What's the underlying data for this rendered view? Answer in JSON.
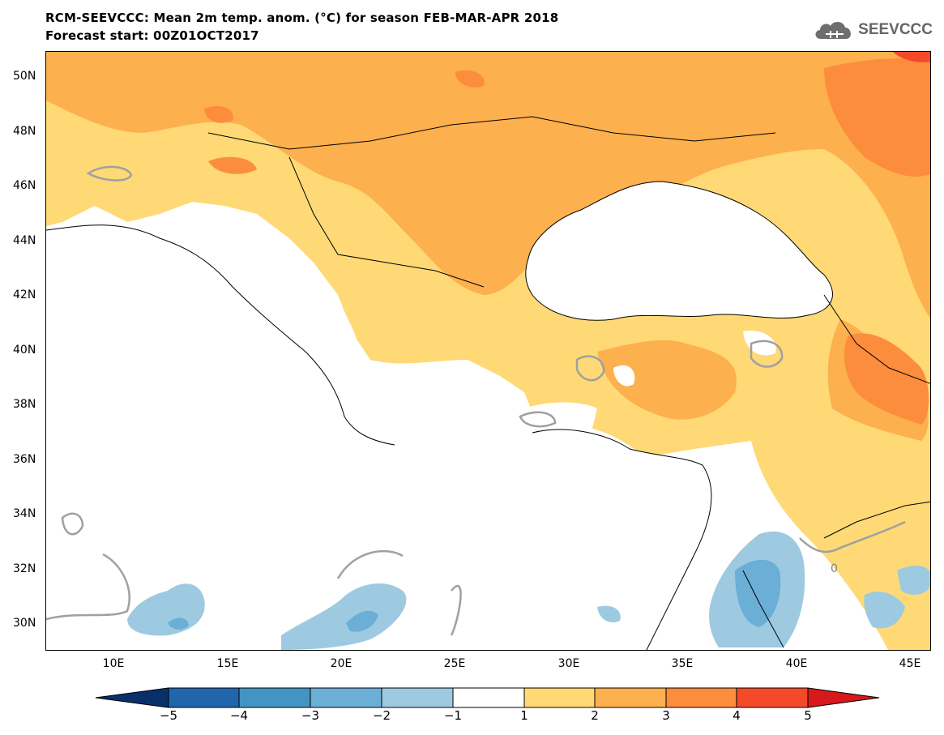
{
  "header": {
    "title_line1": "RCM-SEEVCCC: Mean 2m temp. anom. (°C) for season FEB-MAR-APR 2018",
    "title_line2": "Forecast start: 00Z01OCT2017",
    "brand_text": "SEEVCCC",
    "brand_icon": "cloud-logo-icon"
  },
  "map": {
    "lon_range": [
      7,
      46
    ],
    "lat_range": [
      29,
      51
    ],
    "lat_labels": [
      "50N",
      "48N",
      "46N",
      "44N",
      "42N",
      "40N",
      "38N",
      "36N",
      "34N",
      "32N",
      "30N"
    ],
    "lon_labels": [
      "10E",
      "15E",
      "20E",
      "25E",
      "30E",
      "35E",
      "40E",
      "45E"
    ],
    "contour_label": "0"
  },
  "colorbar": {
    "labels": [
      "−5",
      "−4",
      "−3",
      "−2",
      "−1",
      "1",
      "2",
      "3",
      "4",
      "5"
    ],
    "colors": [
      "#08306b",
      "#2166ac",
      "#4393c3",
      "#6baed6",
      "#9ecae1",
      "#ffffff",
      "#fed976",
      "#fdb04e",
      "#fc8d3c",
      "#f44a2a",
      "#d7191c"
    ]
  },
  "colors": {
    "sea": "#ffffff",
    "anomaly_1_2": "#fed976",
    "anomaly_2_3": "#fdb04e",
    "anomaly_3_4": "#fc8d3c",
    "anomaly_4_5": "#f44a2a",
    "anomaly_neg_1_2": "#9ecae1",
    "anomaly_neg_2_3": "#6baed6",
    "zero_contour": "#a0a0a0"
  }
}
